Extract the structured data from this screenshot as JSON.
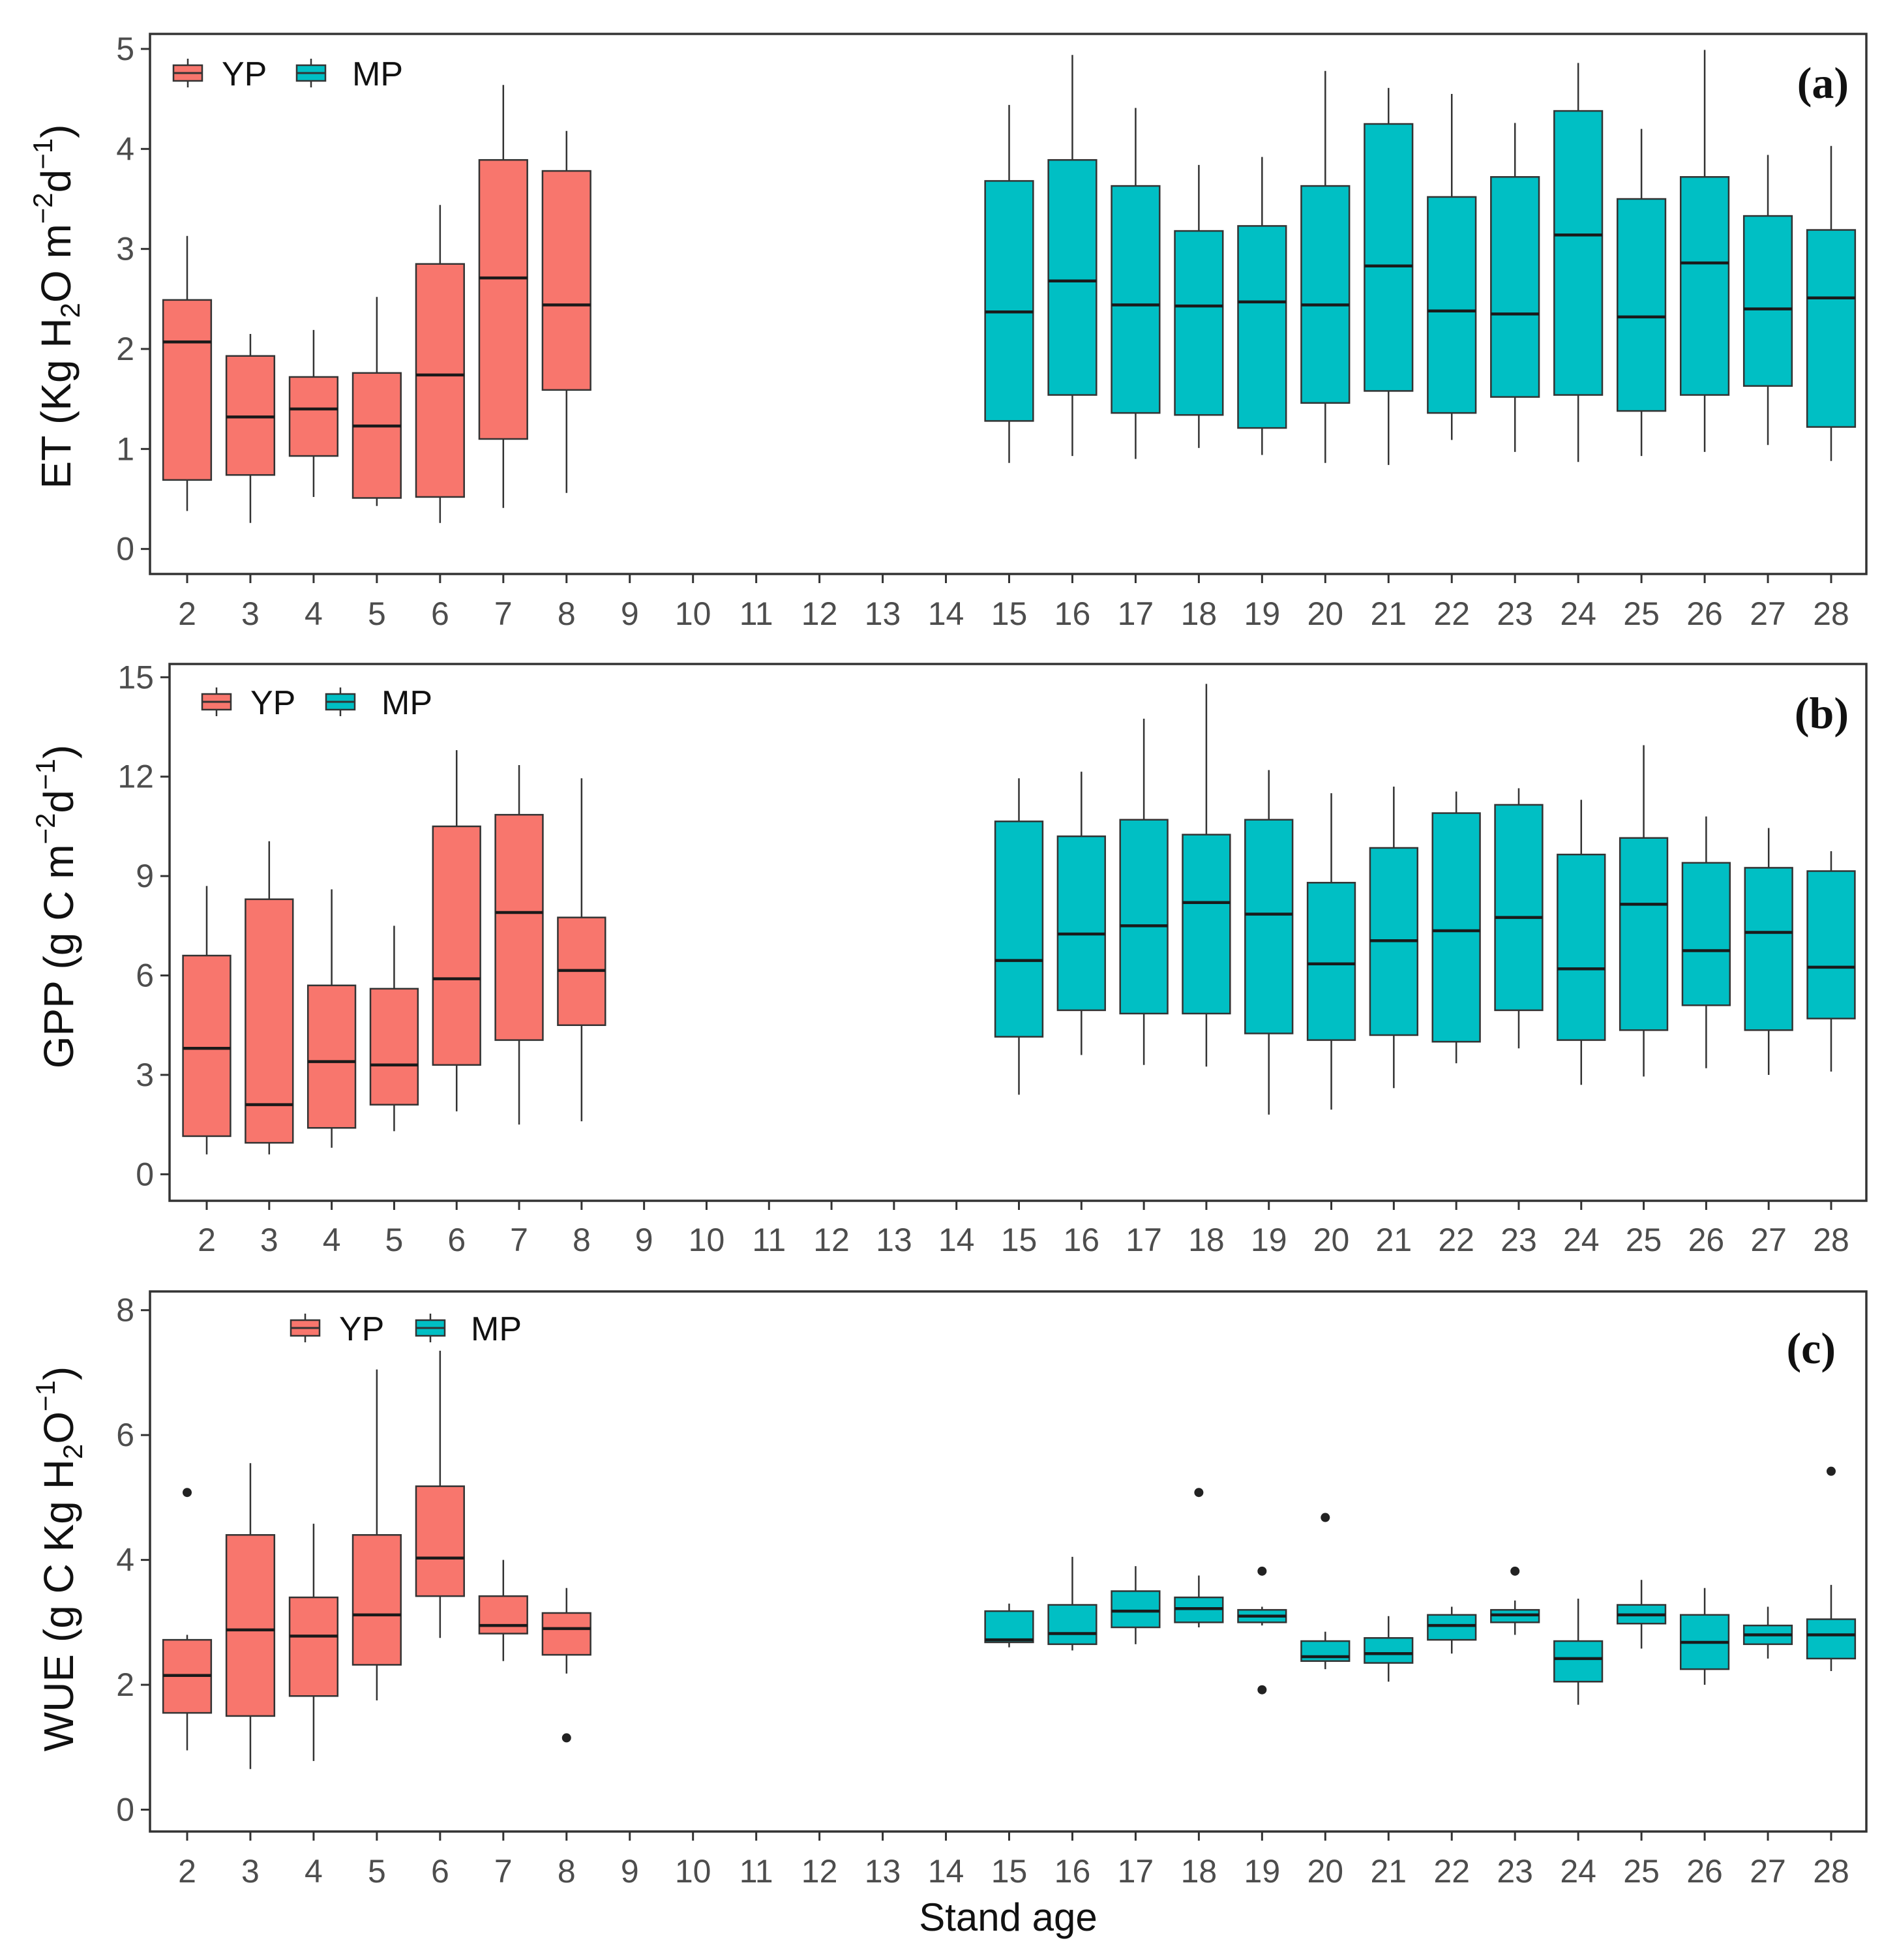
{
  "colors": {
    "YP": "#F8766D",
    "MP": "#00BFC4",
    "frame": "#333333",
    "whisker": "#333333"
  },
  "legend": {
    "yp_label": "YP",
    "mp_label": "MP"
  },
  "x_axis_label": "Stand age",
  "chart_data": [
    {
      "type": "box",
      "panel_tag": "(a)",
      "title": "",
      "ylabel_parts": [
        "ET (Kg H",
        "2",
        "O m",
        "−2",
        "d",
        "−1",
        ")"
      ],
      "ylim": [
        -0.25,
        5.15
      ],
      "yticks": [
        0,
        1,
        2,
        3,
        4,
        5
      ],
      "ytick_labels": [
        "0",
        "1",
        "2",
        "3",
        "4",
        "5"
      ],
      "categories": [
        "2",
        "3",
        "4",
        "5",
        "6",
        "7",
        "8",
        "9",
        "10",
        "11",
        "12",
        "13",
        "14",
        "15",
        "16",
        "17",
        "18",
        "19",
        "20",
        "21",
        "22",
        "23",
        "24",
        "25",
        "26",
        "27",
        "28"
      ],
      "series": [
        {
          "name": "YP",
          "boxes": [
            {
              "age": "2",
              "min": 0.38,
              "q1": 0.69,
              "median": 2.07,
              "q3": 2.49,
              "max": 3.13
            },
            {
              "age": "3",
              "min": 0.26,
              "q1": 0.74,
              "median": 1.32,
              "q3": 1.93,
              "max": 2.15
            },
            {
              "age": "4",
              "min": 0.52,
              "q1": 0.93,
              "median": 1.4,
              "q3": 1.72,
              "max": 2.19
            },
            {
              "age": "5",
              "min": 0.43,
              "q1": 0.51,
              "median": 1.23,
              "q3": 1.76,
              "max": 2.52
            },
            {
              "age": "6",
              "min": 0.26,
              "q1": 0.52,
              "median": 1.74,
              "q3": 2.85,
              "max": 3.44
            },
            {
              "age": "7",
              "min": 0.41,
              "q1": 1.1,
              "median": 2.71,
              "q3": 3.89,
              "max": 4.64
            },
            {
              "age": "8",
              "min": 0.56,
              "q1": 1.59,
              "median": 2.44,
              "q3": 3.78,
              "max": 4.18
            }
          ]
        },
        {
          "name": "MP",
          "boxes": [
            {
              "age": "15",
              "min": 0.86,
              "q1": 1.28,
              "median": 2.37,
              "q3": 3.68,
              "max": 4.44
            },
            {
              "age": "16",
              "min": 0.93,
              "q1": 1.54,
              "median": 2.68,
              "q3": 3.89,
              "max": 4.94
            },
            {
              "age": "17",
              "min": 0.9,
              "q1": 1.36,
              "median": 2.44,
              "q3": 3.63,
              "max": 4.41
            },
            {
              "age": "18",
              "min": 1.01,
              "q1": 1.34,
              "median": 2.43,
              "q3": 3.18,
              "max": 3.84
            },
            {
              "age": "19",
              "min": 0.94,
              "q1": 1.21,
              "median": 2.47,
              "q3": 3.23,
              "max": 3.92
            },
            {
              "age": "20",
              "min": 0.86,
              "q1": 1.46,
              "median": 2.44,
              "q3": 3.63,
              "max": 4.78
            },
            {
              "age": "21",
              "min": 0.84,
              "q1": 1.58,
              "median": 2.83,
              "q3": 4.25,
              "max": 4.61
            },
            {
              "age": "22",
              "min": 1.09,
              "q1": 1.36,
              "median": 2.38,
              "q3": 3.52,
              "max": 4.55
            },
            {
              "age": "23",
              "min": 0.97,
              "q1": 1.52,
              "median": 2.35,
              "q3": 3.72,
              "max": 4.26
            },
            {
              "age": "24",
              "min": 0.87,
              "q1": 1.54,
              "median": 3.14,
              "q3": 4.38,
              "max": 4.86
            },
            {
              "age": "25",
              "min": 0.93,
              "q1": 1.38,
              "median": 2.32,
              "q3": 3.5,
              "max": 4.2
            },
            {
              "age": "26",
              "min": 0.97,
              "q1": 1.54,
              "median": 2.86,
              "q3": 3.72,
              "max": 4.99
            },
            {
              "age": "27",
              "min": 1.04,
              "q1": 1.63,
              "median": 2.4,
              "q3": 3.33,
              "max": 3.94
            },
            {
              "age": "28",
              "min": 0.88,
              "q1": 1.22,
              "median": 2.51,
              "q3": 3.19,
              "max": 4.03
            }
          ]
        }
      ],
      "outliers": []
    },
    {
      "type": "box",
      "panel_tag": "(b)",
      "title": "",
      "ylabel_parts": [
        "GPP (g C m",
        "−2",
        "d",
        "−1",
        ")"
      ],
      "ylim": [
        -0.8,
        15.4
      ],
      "yticks": [
        0,
        3,
        6,
        9,
        12,
        15
      ],
      "ytick_labels": [
        "0",
        "3",
        "6",
        "9",
        "12",
        "15"
      ],
      "categories": [
        "2",
        "3",
        "4",
        "5",
        "6",
        "7",
        "8",
        "9",
        "10",
        "11",
        "12",
        "13",
        "14",
        "15",
        "16",
        "17",
        "18",
        "19",
        "20",
        "21",
        "22",
        "23",
        "24",
        "25",
        "26",
        "27",
        "28"
      ],
      "series": [
        {
          "name": "YP",
          "boxes": [
            {
              "age": "2",
              "min": 0.6,
              "q1": 1.15,
              "median": 3.8,
              "q3": 6.6,
              "max": 8.7
            },
            {
              "age": "3",
              "min": 0.6,
              "q1": 0.95,
              "median": 2.1,
              "q3": 8.3,
              "max": 10.05
            },
            {
              "age": "4",
              "min": 0.8,
              "q1": 1.4,
              "median": 3.4,
              "q3": 5.7,
              "max": 8.6
            },
            {
              "age": "5",
              "min": 1.3,
              "q1": 2.1,
              "median": 3.3,
              "q3": 5.6,
              "max": 7.5
            },
            {
              "age": "6",
              "min": 1.9,
              "q1": 3.3,
              "median": 5.9,
              "q3": 10.5,
              "max": 12.8
            },
            {
              "age": "7",
              "min": 1.5,
              "q1": 4.05,
              "median": 7.9,
              "q3": 10.85,
              "max": 12.35
            },
            {
              "age": "8",
              "min": 1.6,
              "q1": 4.5,
              "median": 6.15,
              "q3": 7.75,
              "max": 11.95
            }
          ]
        },
        {
          "name": "MP",
          "boxes": [
            {
              "age": "15",
              "min": 2.4,
              "q1": 4.15,
              "median": 6.45,
              "q3": 10.65,
              "max": 11.95
            },
            {
              "age": "16",
              "min": 3.6,
              "q1": 4.95,
              "median": 7.25,
              "q3": 10.2,
              "max": 12.15
            },
            {
              "age": "17",
              "min": 3.3,
              "q1": 4.85,
              "median": 7.5,
              "q3": 10.7,
              "max": 13.75
            },
            {
              "age": "18",
              "min": 3.25,
              "q1": 4.85,
              "median": 8.2,
              "q3": 10.25,
              "max": 14.8
            },
            {
              "age": "19",
              "min": 1.8,
              "q1": 4.25,
              "median": 7.85,
              "q3": 10.7,
              "max": 12.2
            },
            {
              "age": "20",
              "min": 1.95,
              "q1": 4.05,
              "median": 6.35,
              "q3": 8.8,
              "max": 11.5
            },
            {
              "age": "21",
              "min": 2.6,
              "q1": 4.2,
              "median": 7.05,
              "q3": 9.85,
              "max": 11.7
            },
            {
              "age": "22",
              "min": 3.35,
              "q1": 4.0,
              "median": 7.35,
              "q3": 10.9,
              "max": 11.55
            },
            {
              "age": "23",
              "min": 3.8,
              "q1": 4.95,
              "median": 7.75,
              "q3": 11.15,
              "max": 11.65
            },
            {
              "age": "24",
              "min": 2.7,
              "q1": 4.05,
              "median": 6.2,
              "q3": 9.65,
              "max": 11.3
            },
            {
              "age": "25",
              "min": 2.95,
              "q1": 4.35,
              "median": 8.15,
              "q3": 10.15,
              "max": 12.95
            },
            {
              "age": "26",
              "min": 3.2,
              "q1": 5.1,
              "median": 6.75,
              "q3": 9.4,
              "max": 10.8
            },
            {
              "age": "27",
              "min": 3.0,
              "q1": 4.35,
              "median": 7.3,
              "q3": 9.25,
              "max": 10.45
            },
            {
              "age": "28",
              "min": 3.1,
              "q1": 4.7,
              "median": 6.25,
              "q3": 9.15,
              "max": 9.75
            }
          ]
        }
      ],
      "outliers": []
    },
    {
      "type": "box",
      "panel_tag": "(c)",
      "title": "",
      "ylabel_parts": [
        "WUE (g C Kg H",
        "2",
        "O",
        "−1",
        ")"
      ],
      "ylim": [
        -0.35,
        8.3
      ],
      "yticks": [
        0,
        2,
        4,
        6,
        8
      ],
      "ytick_labels": [
        "0",
        "2",
        "4",
        "6",
        "8"
      ],
      "categories": [
        "2",
        "3",
        "4",
        "5",
        "6",
        "7",
        "8",
        "9",
        "10",
        "11",
        "12",
        "13",
        "14",
        "15",
        "16",
        "17",
        "18",
        "19",
        "20",
        "21",
        "22",
        "23",
        "24",
        "25",
        "26",
        "27",
        "28"
      ],
      "series": [
        {
          "name": "YP",
          "boxes": [
            {
              "age": "2",
              "min": 0.95,
              "q1": 1.55,
              "median": 2.15,
              "q3": 2.72,
              "max": 2.8
            },
            {
              "age": "3",
              "min": 0.65,
              "q1": 1.5,
              "median": 2.88,
              "q3": 4.4,
              "max": 5.55
            },
            {
              "age": "4",
              "min": 0.78,
              "q1": 1.82,
              "median": 2.78,
              "q3": 3.4,
              "max": 4.58
            },
            {
              "age": "5",
              "min": 1.75,
              "q1": 2.32,
              "median": 3.12,
              "q3": 4.4,
              "max": 7.05
            },
            {
              "age": "6",
              "min": 2.75,
              "q1": 3.42,
              "median": 4.03,
              "q3": 5.18,
              "max": 7.35
            },
            {
              "age": "7",
              "min": 2.38,
              "q1": 2.82,
              "median": 2.95,
              "q3": 3.42,
              "max": 4.0
            },
            {
              "age": "8",
              "min": 2.18,
              "q1": 2.48,
              "median": 2.9,
              "q3": 3.15,
              "max": 3.55
            }
          ]
        },
        {
          "name": "MP",
          "boxes": [
            {
              "age": "15",
              "min": 2.6,
              "q1": 2.68,
              "median": 2.72,
              "q3": 3.18,
              "max": 3.3
            },
            {
              "age": "16",
              "min": 2.55,
              "q1": 2.65,
              "median": 2.82,
              "q3": 3.28,
              "max": 4.05
            },
            {
              "age": "17",
              "min": 2.65,
              "q1": 2.92,
              "median": 3.18,
              "q3": 3.5,
              "max": 3.9
            },
            {
              "age": "18",
              "min": 2.92,
              "q1": 3.0,
              "median": 3.22,
              "q3": 3.4,
              "max": 3.75
            },
            {
              "age": "19",
              "min": 2.95,
              "q1": 3.0,
              "median": 3.1,
              "q3": 3.2,
              "max": 3.25
            },
            {
              "age": "20",
              "min": 2.25,
              "q1": 2.38,
              "median": 2.45,
              "q3": 2.7,
              "max": 2.85
            },
            {
              "age": "21",
              "min": 2.05,
              "q1": 2.35,
              "median": 2.5,
              "q3": 2.75,
              "max": 3.1
            },
            {
              "age": "22",
              "min": 2.5,
              "q1": 2.72,
              "median": 2.95,
              "q3": 3.12,
              "max": 3.25
            },
            {
              "age": "23",
              "min": 2.8,
              "q1": 3.0,
              "median": 3.12,
              "q3": 3.2,
              "max": 3.35
            },
            {
              "age": "24",
              "min": 1.68,
              "q1": 2.05,
              "median": 2.42,
              "q3": 2.7,
              "max": 3.38
            },
            {
              "age": "25",
              "min": 2.58,
              "q1": 2.98,
              "median": 3.12,
              "q3": 3.28,
              "max": 3.68
            },
            {
              "age": "26",
              "min": 2.0,
              "q1": 2.25,
              "median": 2.68,
              "q3": 3.12,
              "max": 3.55
            },
            {
              "age": "27",
              "min": 2.42,
              "q1": 2.65,
              "median": 2.8,
              "q3": 2.95,
              "max": 3.25
            },
            {
              "age": "28",
              "min": 2.22,
              "q1": 2.42,
              "median": 2.8,
              "q3": 3.05,
              "max": 3.6
            }
          ]
        }
      ],
      "outliers": [
        {
          "age": "2",
          "value": 5.08
        },
        {
          "age": "8",
          "value": 1.15
        },
        {
          "age": "18",
          "value": 5.08
        },
        {
          "age": "19",
          "value": 3.82
        },
        {
          "age": "19",
          "value": 1.92
        },
        {
          "age": "20",
          "value": 4.68
        },
        {
          "age": "23",
          "value": 3.82
        },
        {
          "age": "28",
          "value": 5.42
        }
      ]
    }
  ]
}
